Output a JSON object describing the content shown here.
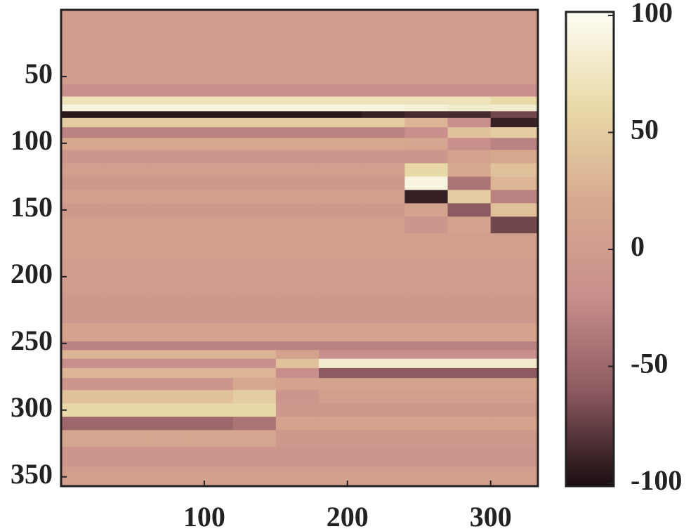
{
  "chart_data": {
    "type": "heatmap",
    "x": [
      15,
      45,
      75,
      105,
      135,
      165,
      195,
      225,
      255,
      285,
      315
    ],
    "y": [
      10,
      30,
      50,
      62,
      68,
      74,
      78,
      84,
      92,
      100,
      110,
      120,
      130,
      140,
      150,
      160,
      175,
      200,
      225,
      245,
      252,
      258,
      265,
      272,
      280,
      290,
      300,
      310,
      320,
      335,
      350
    ],
    "values": [
      [
        0,
        0,
        0,
        0,
        0,
        0,
        0,
        0,
        0,
        0,
        0
      ],
      [
        0,
        0,
        0,
        0,
        0,
        0,
        0,
        0,
        0,
        0,
        0
      ],
      [
        0,
        0,
        0,
        0,
        0,
        0,
        0,
        0,
        0,
        0,
        0
      ],
      [
        -20,
        -20,
        -20,
        -20,
        -20,
        -20,
        -20,
        -20,
        -20,
        -20,
        -20
      ],
      [
        70,
        70,
        70,
        70,
        70,
        70,
        70,
        70,
        70,
        70,
        60
      ],
      [
        90,
        90,
        90,
        90,
        90,
        90,
        90,
        90,
        85,
        80,
        80
      ],
      [
        -95,
        -95,
        -95,
        -95,
        -95,
        -95,
        -95,
        -90,
        -85,
        -85,
        -70
      ],
      [
        50,
        50,
        50,
        50,
        50,
        50,
        50,
        50,
        30,
        -20,
        -90
      ],
      [
        -30,
        -30,
        -30,
        -30,
        -30,
        -30,
        -30,
        -30,
        -20,
        40,
        50
      ],
      [
        20,
        20,
        20,
        20,
        20,
        20,
        20,
        20,
        15,
        -20,
        -30
      ],
      [
        -10,
        -10,
        -10,
        -10,
        -10,
        -10,
        -10,
        -10,
        -10,
        10,
        20
      ],
      [
        5,
        5,
        5,
        5,
        5,
        5,
        5,
        5,
        60,
        20,
        40
      ],
      [
        -5,
        -5,
        -5,
        -5,
        -5,
        -5,
        -5,
        -5,
        90,
        -40,
        30
      ],
      [
        5,
        5,
        5,
        5,
        5,
        5,
        5,
        5,
        -90,
        50,
        -30
      ],
      [
        -5,
        -5,
        -5,
        -5,
        -5,
        -5,
        -5,
        -5,
        10,
        -60,
        40
      ],
      [
        5,
        5,
        5,
        5,
        5,
        5,
        5,
        5,
        -10,
        10,
        -70
      ],
      [
        5,
        5,
        5,
        5,
        5,
        5,
        5,
        5,
        5,
        5,
        5
      ],
      [
        0,
        0,
        0,
        0,
        0,
        0,
        0,
        0,
        0,
        0,
        0
      ],
      [
        -5,
        -5,
        -5,
        -5,
        -5,
        -5,
        -5,
        -5,
        -5,
        -5,
        -5
      ],
      [
        10,
        10,
        10,
        10,
        10,
        10,
        10,
        10,
        10,
        10,
        10
      ],
      [
        -30,
        -30,
        -30,
        -30,
        -30,
        -30,
        -30,
        -30,
        -30,
        -30,
        -30
      ],
      [
        30,
        30,
        30,
        30,
        30,
        10,
        -20,
        -20,
        -20,
        -20,
        -20
      ],
      [
        -20,
        -20,
        -20,
        -20,
        -20,
        40,
        80,
        80,
        80,
        80,
        80
      ],
      [
        30,
        30,
        30,
        30,
        30,
        -20,
        -60,
        -60,
        -60,
        -60,
        -60
      ],
      [
        -10,
        -10,
        -10,
        -10,
        20,
        10,
        10,
        10,
        10,
        10,
        10
      ],
      [
        40,
        40,
        40,
        40,
        50,
        -10,
        5,
        5,
        5,
        5,
        5
      ],
      [
        60,
        60,
        60,
        60,
        60,
        -5,
        -5,
        -5,
        -5,
        -5,
        -5
      ],
      [
        -50,
        -50,
        -50,
        -50,
        -40,
        10,
        10,
        10,
        10,
        10,
        10
      ],
      [
        15,
        15,
        15,
        15,
        15,
        -5,
        -5,
        -5,
        -5,
        -5,
        -5
      ],
      [
        -10,
        -10,
        -10,
        -10,
        -10,
        -10,
        -10,
        -10,
        -10,
        -10,
        -10
      ],
      [
        5,
        5,
        5,
        5,
        5,
        5,
        5,
        5,
        5,
        5,
        5
      ]
    ],
    "xlim": [
      0,
      333
    ],
    "xticks": [
      100,
      200,
      300
    ],
    "ylim": [
      0,
      357
    ],
    "yticks": [
      50,
      100,
      150,
      200,
      250,
      300,
      350
    ],
    "y_reversed": true,
    "clim": [
      -100,
      100
    ],
    "cticks": [
      -100,
      -50,
      0,
      50,
      100
    ],
    "colormap": [
      "#1a0c10",
      "#8c5a60",
      "#c98f8c",
      "#d6a98f",
      "#e9d9a8",
      "#fdfdf3"
    ]
  }
}
